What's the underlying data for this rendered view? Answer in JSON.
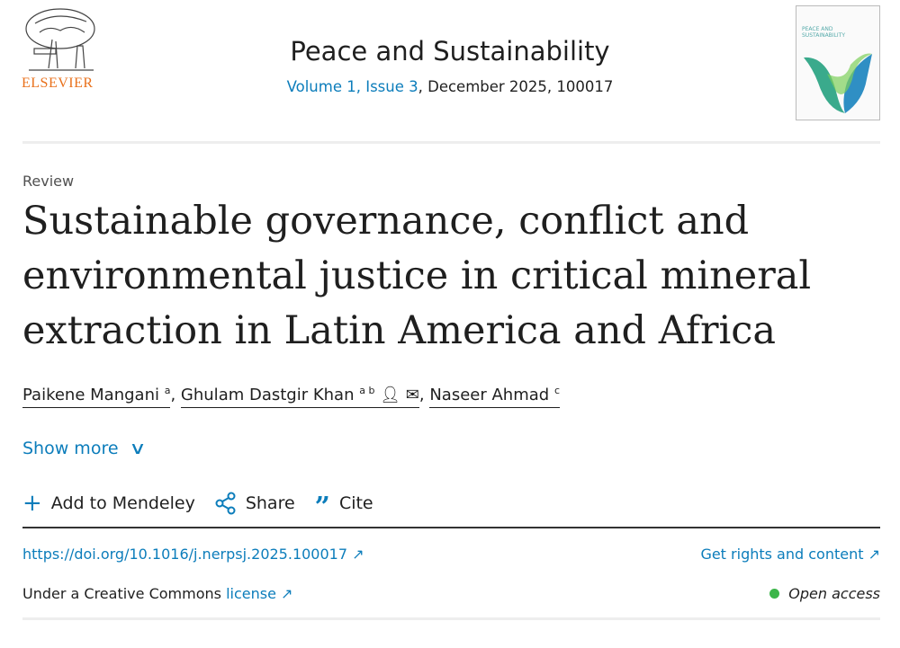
{
  "publisher": {
    "logo_text": "ELSEVIER"
  },
  "journal": {
    "title": "Peace and Sustainability",
    "volume_issue": "Volume 1, Issue 3",
    "date_article": ", December 2025, 100017",
    "cover_text": "PEACE AND SUSTAINABILITY"
  },
  "article": {
    "type": "Review",
    "title": "Sustainable governance, conflict and environmental justice in critical mineral extraction in Latin America and Africa"
  },
  "authors": [
    {
      "name": "Paikene Mangani",
      "sup": "a"
    },
    {
      "name": "Ghulam Dastgir Khan",
      "sup": "a b"
    },
    {
      "name": "Naseer Ahmad",
      "sup": "c"
    }
  ],
  "show_more": "Show more",
  "actions": {
    "mendeley": "Add to Mendeley",
    "share": "Share",
    "cite": "Cite"
  },
  "doi": "https://doi.org/10.1016/j.nerpsj.2025.100017",
  "rights": "Get rights and content",
  "license_prefix": "Under a Creative Commons ",
  "license_link": "license",
  "open_access": "Open access",
  "colors": {
    "link": "#0c7dbb",
    "brand": "#e9711c",
    "open_access": "#3cb54a"
  }
}
